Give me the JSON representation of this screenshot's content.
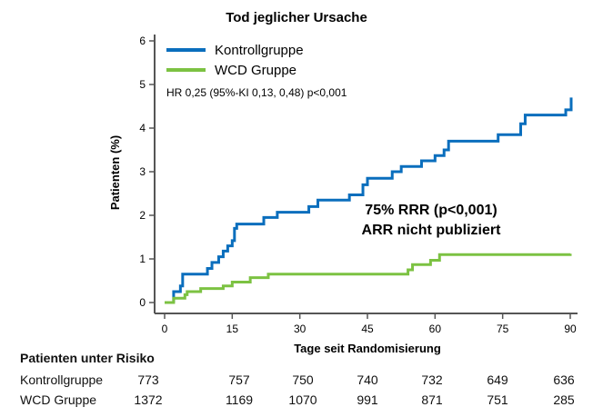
{
  "chart_data": {
    "type": "line",
    "step": true,
    "title": "Tod jeglicher Ursache",
    "xlabel": "Tage seit Randomisierung",
    "ylabel": "Patienten  (%)",
    "xlim": [
      0,
      90
    ],
    "ylim": [
      0,
      6
    ],
    "xticks": [
      0,
      15,
      30,
      45,
      60,
      75,
      90
    ],
    "yticks": [
      0,
      1,
      2,
      3,
      4,
      5,
      6
    ],
    "legend_position": "top-left",
    "series": [
      {
        "name": "Kontrollgruppe",
        "color": "#0a6ebd",
        "x": [
          2,
          2,
          3.5,
          4,
          9.5,
          10.5,
          12,
          13,
          14,
          15,
          15.5,
          16,
          22,
          25,
          32,
          34,
          41,
          44,
          45,
          50.5,
          52.5,
          57,
          60,
          62,
          63,
          74,
          79,
          80,
          89,
          90.2
        ],
        "y": [
          0.1,
          0.25,
          0.38,
          0.65,
          0.78,
          0.92,
          1.05,
          1.18,
          1.3,
          1.42,
          1.7,
          1.8,
          1.95,
          2.07,
          2.2,
          2.35,
          2.47,
          2.7,
          2.85,
          3.0,
          3.12,
          3.25,
          3.37,
          3.5,
          3.7,
          3.85,
          4.1,
          4.3,
          4.42,
          4.7
        ]
      },
      {
        "name": "WCD Gruppe",
        "color": "#7cc242",
        "x": [
          0,
          2,
          4.5,
          5,
          8,
          13,
          15,
          19,
          23,
          54,
          55,
          59,
          61,
          90
        ],
        "y": [
          0,
          0.1,
          0.18,
          0.25,
          0.32,
          0.38,
          0.47,
          0.57,
          0.65,
          0.75,
          0.87,
          0.97,
          1.1,
          1.12
        ]
      }
    ],
    "annotations": [
      "HR 0,25 (95%-KI 0,13, 0,48) p<0,001",
      "75% RRR (p<0,001)",
      "ARR nicht publiziert"
    ]
  },
  "risk_table": {
    "header": "Patienten unter Risiko",
    "rows": [
      {
        "label": "Kontrollgruppe",
        "values": [
          "773",
          "757",
          "750",
          "740",
          "732",
          "649",
          "636"
        ]
      },
      {
        "label": "WCD Gruppe",
        "values": [
          "1372",
          "1169",
          "1070",
          "991",
          "871",
          "751",
          "285"
        ]
      }
    ]
  }
}
